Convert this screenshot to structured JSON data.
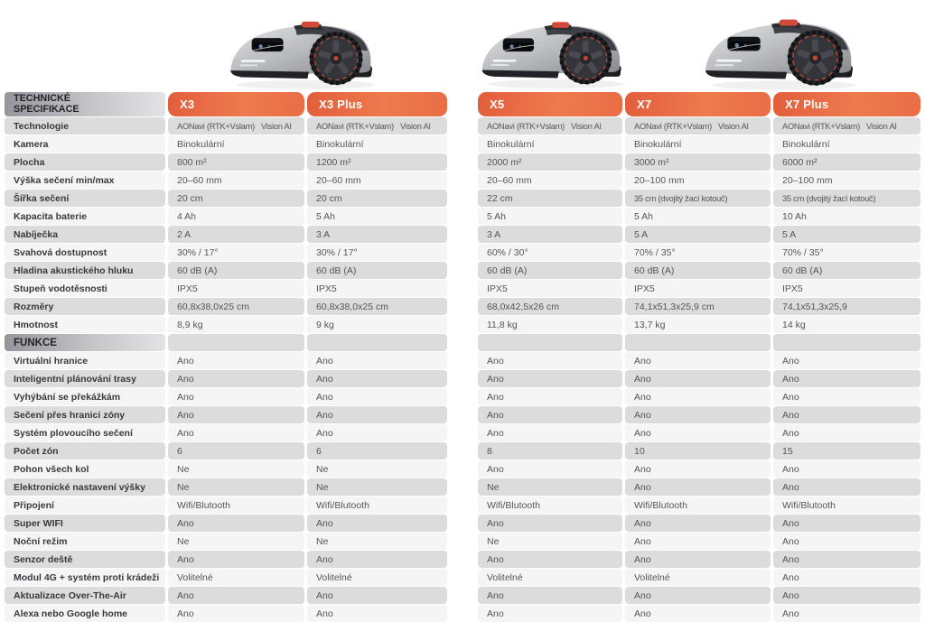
{
  "colors": {
    "accent_orange": "#e8693f",
    "row_gray": "#dcdcdd",
    "row_light": "#f5f5f6",
    "header_gradient_dark": "#95959a",
    "pill_text": "#ffffff"
  },
  "images": [
    {
      "name": "x3-series-mower",
      "alt": "robotic mower X3 series"
    },
    {
      "name": "x5-mower",
      "alt": "robotic mower X5"
    },
    {
      "name": "x7-series-mower",
      "alt": "robotic mower X7 series"
    }
  ],
  "table": {
    "spec_header": "TECHNICKÉ\nSPECIFIKACE",
    "funkce_header": "FUNKCE",
    "columns": [
      "X3",
      "X3 Plus",
      "X5",
      "X7",
      "X7 Plus"
    ],
    "spec_rows": [
      {
        "label": "Technologie",
        "values": [
          "AONavi (RTK+Vslam)   Vision AI",
          "AONavi (RTK+Vslam)   Vision AI",
          "AONavi (RTK+Vslam)   Vision AI",
          "AONavi (RTK+Vslam)   Vision AI",
          "AONavi (RTK+Vslam)   Vision AI"
        ]
      },
      {
        "label": "Kamera",
        "values": [
          "Binokulární",
          "Binokulární",
          "Binokulární",
          "Binokulární",
          "Binokulární"
        ]
      },
      {
        "label": "Plocha",
        "values": [
          "800 m²",
          "1200 m²",
          "2000 m²",
          "3000 m²",
          "6000 m²"
        ]
      },
      {
        "label": "Výška sečení min/max",
        "values": [
          "20–60 mm",
          "20–60 mm",
          "20–60 mm",
          "20–100 mm",
          "20–100 mm"
        ]
      },
      {
        "label": "Šířka sečení",
        "values": [
          "20 cm",
          "20 cm",
          "22 cm",
          "35 cm (dvojitý žací kotouč)",
          "35 cm (dvojitý žací kotouč)"
        ]
      },
      {
        "label": "Kapacita baterie",
        "values": [
          "4 Ah",
          "5 Ah",
          "5 Ah",
          "5 Ah",
          "10 Ah"
        ]
      },
      {
        "label": "Nabíječka",
        "values": [
          "2 A",
          "3 A",
          "3 A",
          "5 A",
          "5 A"
        ]
      },
      {
        "label": "Svahová dostupnost",
        "values": [
          "30% / 17°",
          "30% / 17°",
          "60% / 30°",
          "70% / 35°",
          "70% / 35°"
        ]
      },
      {
        "label": "Hladina akustického hluku",
        "values": [
          "60 dB (A)",
          "60 dB (A)",
          "60 dB (A)",
          "60 dB (A)",
          "60 dB (A)"
        ]
      },
      {
        "label": "Stupeň vodotěsnosti",
        "values": [
          "IPX5",
          "IPX5",
          "IPX5",
          "IPX5",
          "IPX5"
        ]
      },
      {
        "label": "Rozměry",
        "values": [
          "60,8x38,0x25 cm",
          "60,8x38,0x25 cm",
          "68,0x42,5x26 cm",
          "74,1x51,3x25,9 cm",
          "74,1x51,3x25,9"
        ]
      },
      {
        "label": "Hmotnost",
        "values": [
          "8,9 kg",
          "9 kg",
          "11,8 kg",
          "13,7 kg",
          "14 kg"
        ]
      }
    ],
    "funkce_rows": [
      {
        "label": "Virtuální hranice",
        "values": [
          "Ano",
          "Ano",
          "Ano",
          "Ano",
          "Ano"
        ]
      },
      {
        "label": "Inteligentní plánování trasy",
        "values": [
          "Ano",
          "Ano",
          "Ano",
          "Ano",
          "Ano"
        ]
      },
      {
        "label": "Vyhýbání se překážkám",
        "values": [
          "Ano",
          "Ano",
          "Ano",
          "Ano",
          "Ano"
        ]
      },
      {
        "label": "Sečení přes hranici zóny",
        "values": [
          "Ano",
          "Ano",
          "Ano",
          "Ano",
          "Ano"
        ]
      },
      {
        "label": "Systém plovoucího sečení",
        "values": [
          "Ano",
          "Ano",
          "Ano",
          "Ano",
          "Ano"
        ]
      },
      {
        "label": "Počet zón",
        "values": [
          "6",
          "6",
          "8",
          "10",
          "15"
        ]
      },
      {
        "label": "Pohon všech kol",
        "values": [
          "Ne",
          "Ne",
          "Ano",
          "Ano",
          "Ano"
        ]
      },
      {
        "label": "Elektronické nastavení výšky",
        "values": [
          "Ne",
          "Ne",
          "Ne",
          "Ano",
          "Ano"
        ]
      },
      {
        "label": "Připojení",
        "values": [
          "Wifi/Blutooth",
          "Wifi/Blutooth",
          "Wifi/Blutooth",
          "Wifi/Blutooth",
          "Wifi/Blutooth"
        ]
      },
      {
        "label": "Super WIFI",
        "values": [
          "Ano",
          "Ano",
          "Ano",
          "Ano",
          "Ano"
        ]
      },
      {
        "label": "Noční režim",
        "values": [
          "Ne",
          "Ne",
          "Ne",
          "Ano",
          "Ano"
        ]
      },
      {
        "label": "Senzor deště",
        "values": [
          "Ano",
          "Ano",
          "Ano",
          "Ano",
          "Ano"
        ]
      },
      {
        "label": "Modul 4G + systém proti krádeži",
        "values": [
          "Volitelné",
          "Volitelné",
          "Volitelné",
          "Volitelné",
          "Ano"
        ]
      },
      {
        "label": "Aktualizace Over-The-Air",
        "values": [
          "Ano",
          "Ano",
          "Ano",
          "Ano",
          "Ano"
        ]
      },
      {
        "label": "Alexa nebo Google home",
        "values": [
          "Ano",
          "Ano",
          "Ano",
          "Ano",
          "Ano"
        ]
      }
    ]
  }
}
